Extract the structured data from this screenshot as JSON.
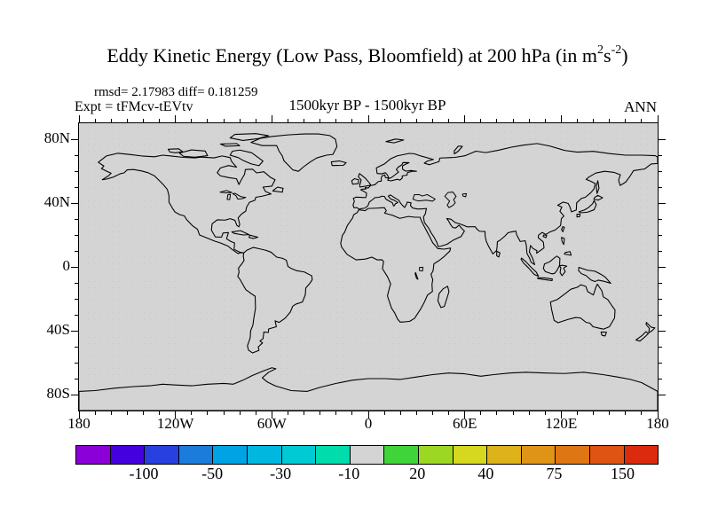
{
  "title": {
    "prefix": "Eddy Kinetic Energy (Low Pass, Bloomfield) at 200 hPa (in m",
    "sup1": "2",
    "mid": "s",
    "sup2": "-2",
    "suffix": ")"
  },
  "header": {
    "rmsd_diff": "rmsd= 2.17983 diff= 0.181259",
    "experiment": "Expt = tFMcv-tEVtv",
    "period": "1500kyr BP - 1500kyr BP",
    "season": "ANN"
  },
  "map_axes": {
    "lon_labels": [
      {
        "text": "180",
        "deg": -180
      },
      {
        "text": "120W",
        "deg": -120
      },
      {
        "text": "60W",
        "deg": -60
      },
      {
        "text": "0",
        "deg": 0
      },
      {
        "text": "60E",
        "deg": 60
      },
      {
        "text": "120E",
        "deg": 120
      },
      {
        "text": "180",
        "deg": 180
      }
    ],
    "lat_labels": [
      {
        "text": "80N",
        "deg": 80
      },
      {
        "text": "40N",
        "deg": 40
      },
      {
        "text": "0",
        "deg": 0
      },
      {
        "text": "40S",
        "deg": -40
      },
      {
        "text": "80S",
        "deg": -80
      }
    ],
    "lon_minor_step_deg": 10,
    "lat_minor_step_deg": 10,
    "lon_major_step_deg": 60,
    "lat_major_step_deg": 40
  },
  "colorbar": {
    "colors": [
      "#8B00D8",
      "#4500DF",
      "#2740DF",
      "#1B7CDC",
      "#00A3E3",
      "#00B7DF",
      "#00CBD4",
      "#00DCAB",
      "#D4D4D4",
      "#3FD53A",
      "#9CD823",
      "#D5D81E",
      "#DDB21A",
      "#DF9417",
      "#DF7614",
      "#DF5413",
      "#DC2A0E"
    ],
    "labels": [
      {
        "text": "-100",
        "boundary": 2
      },
      {
        "text": "-50",
        "boundary": 4
      },
      {
        "text": "-30",
        "boundary": 6
      },
      {
        "text": "-10",
        "boundary": 8
      },
      {
        "text": "20",
        "boundary": 10
      },
      {
        "text": "40",
        "boundary": 12
      },
      {
        "text": "75",
        "boundary": 14
      },
      {
        "text": "150",
        "boundary": 16
      }
    ]
  },
  "chart_data": {
    "type": "heatmap",
    "subtype": "filled-contour difference field on equirectangular world map with coastlines",
    "title": "Eddy Kinetic Energy (Low Pass, Bloomfield) at 200 hPa (in m2 s-2)",
    "statistics": {
      "rmsd": 2.17983,
      "diff": 0.181259
    },
    "experiment": "tFMcv-tEVtv",
    "period": "1500kyr BP - 1500kyr BP",
    "season": "ANN",
    "x_axis": {
      "tick_labels": [
        "180",
        "120W",
        "60W",
        "0",
        "60E",
        "120E",
        "180"
      ],
      "range_deg": [
        -180,
        180
      ],
      "minor_tick_step_deg": 10
    },
    "y_axis": {
      "tick_labels": [
        "80N",
        "40N",
        "0",
        "40S",
        "80S"
      ],
      "range_deg": [
        -90,
        90
      ],
      "minor_tick_step_deg": 10
    },
    "colorbar_tick_labels": [
      -100,
      -50,
      -30,
      -10,
      20,
      40,
      75,
      150
    ],
    "colorbar_segment_count": 17,
    "field": "entire map falls in the neutral gray bin (difference ~0 everywhere); only coastlines visible"
  }
}
